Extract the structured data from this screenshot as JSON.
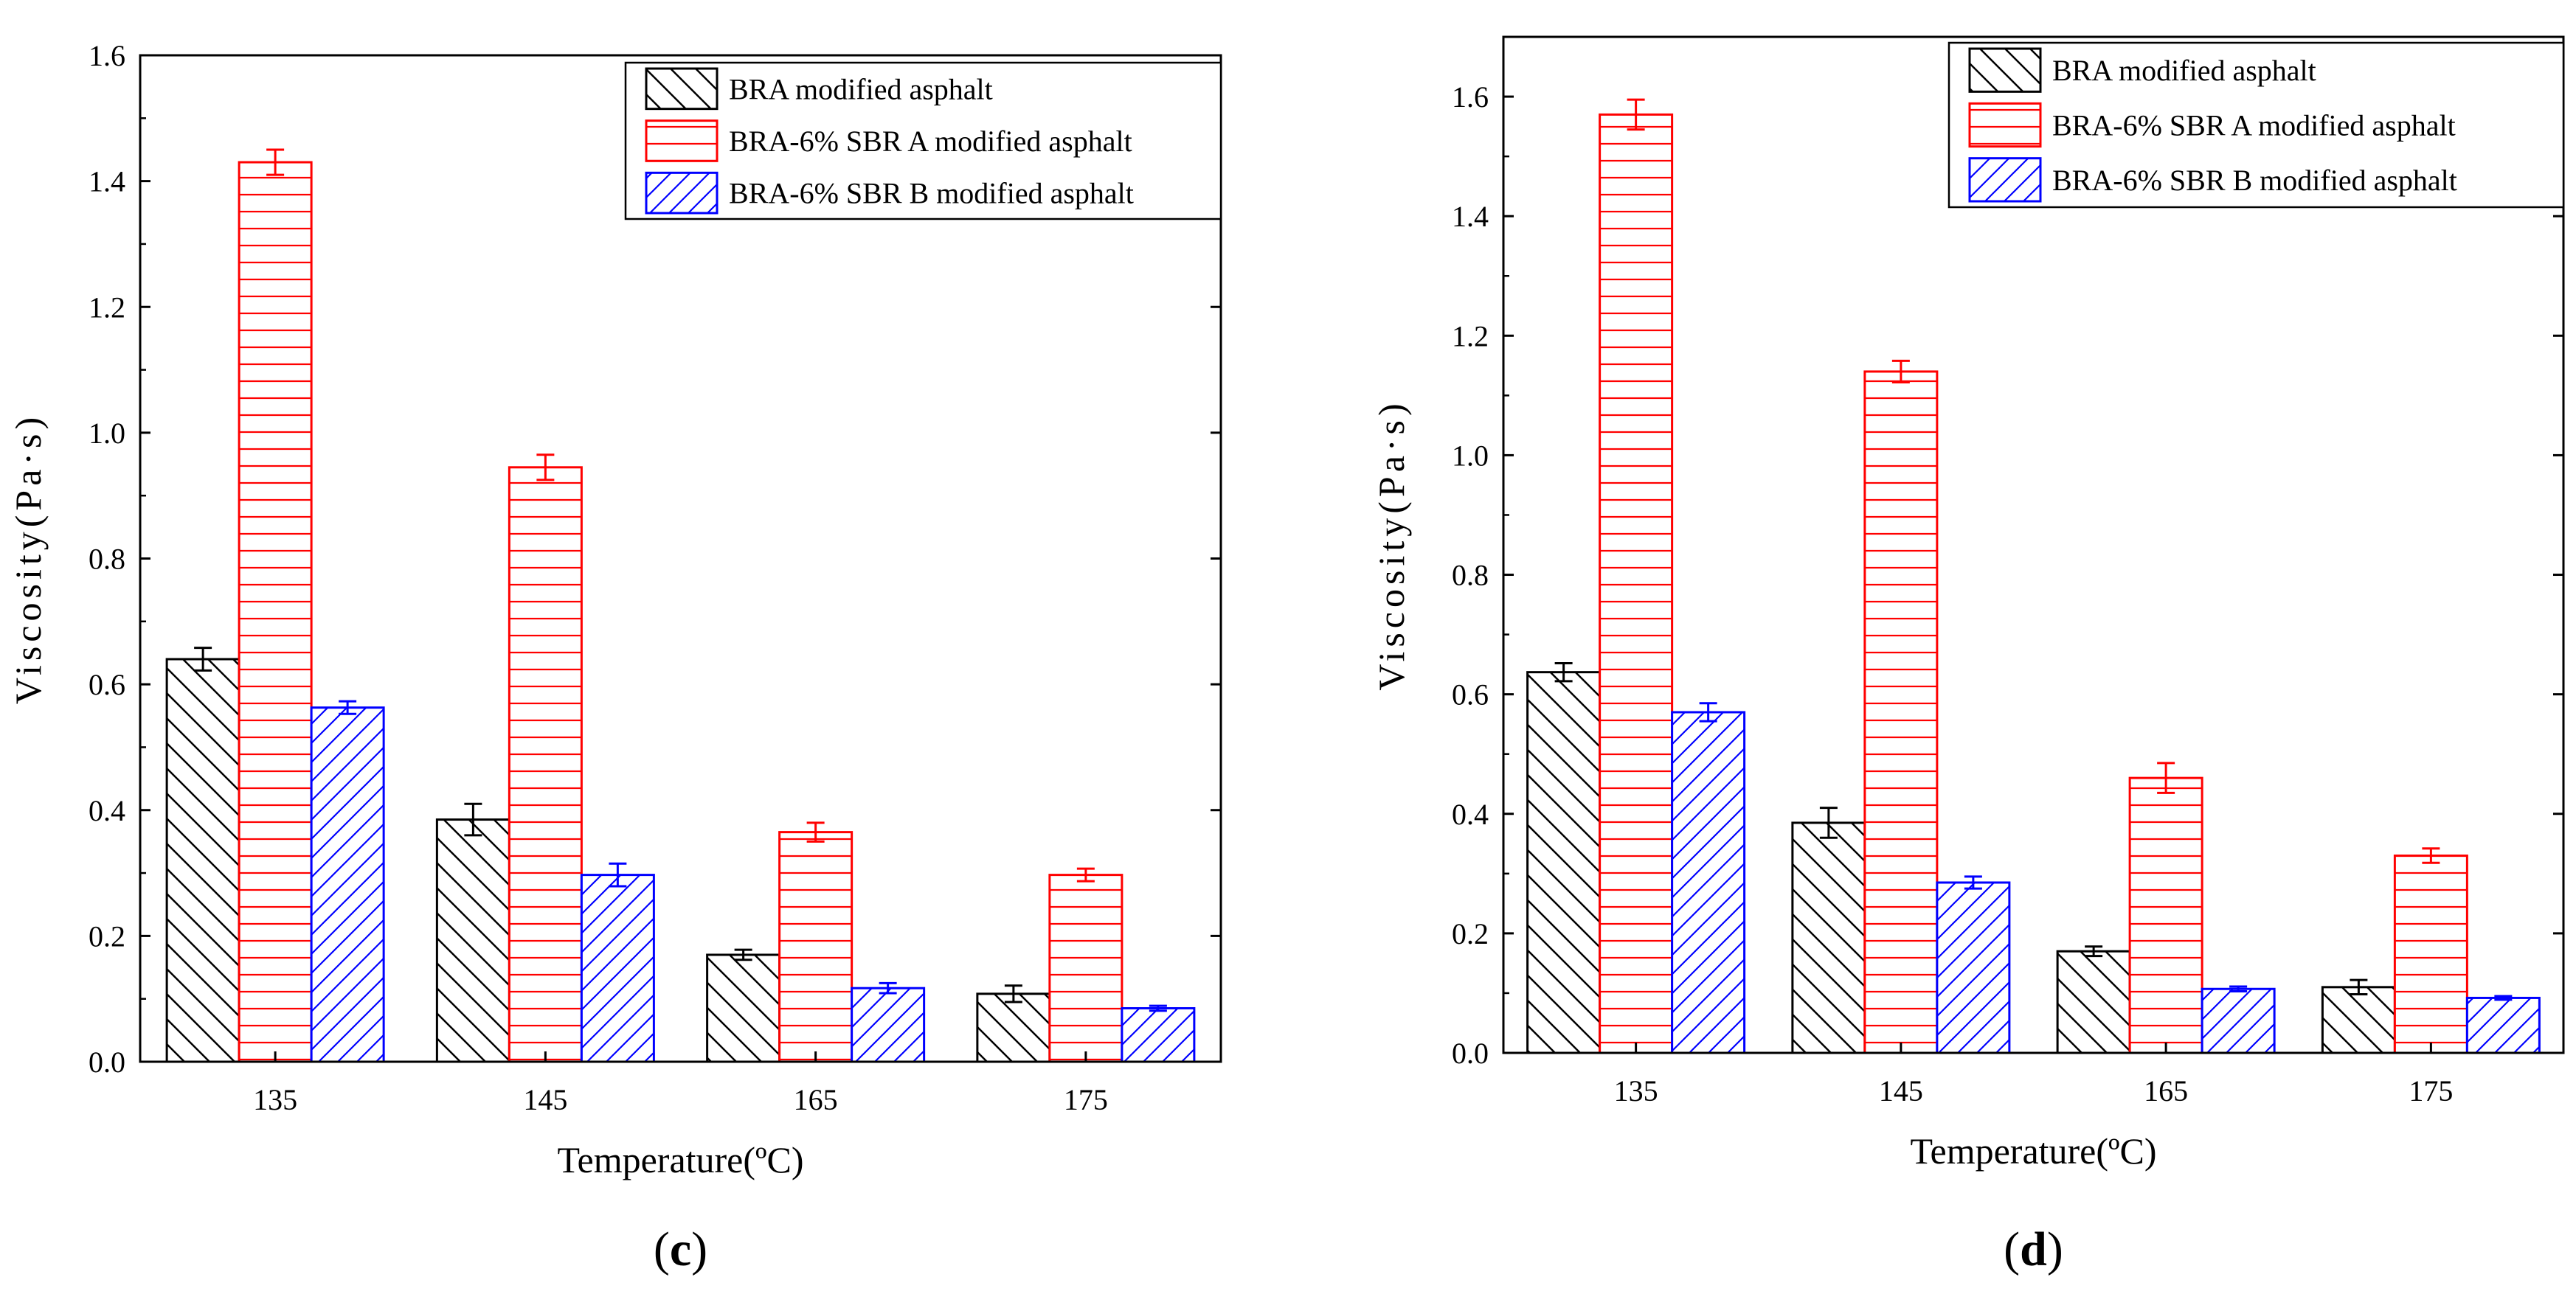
{
  "series_colors": [
    "#000000",
    "#ff0000",
    "#0000ff"
  ],
  "chart_data": [
    {
      "type": "bar",
      "panel": "(c)",
      "panel_letter": "c",
      "categories": [
        "135",
        "145",
        "165",
        "175"
      ],
      "series": [
        {
          "name": "BRA modified asphalt",
          "values": [
            0.64,
            0.385,
            0.17,
            0.108
          ],
          "errors": [
            0.018,
            0.025,
            0.008,
            0.013
          ]
        },
        {
          "name": "BRA-6% SBR A modified asphalt",
          "values": [
            1.43,
            0.945,
            0.365,
            0.297
          ],
          "errors": [
            0.02,
            0.02,
            0.015,
            0.01
          ]
        },
        {
          "name": "BRA-6% SBR B modified asphalt",
          "values": [
            0.563,
            0.297,
            0.117,
            0.085
          ],
          "errors": [
            0.01,
            0.018,
            0.008,
            0.004
          ]
        }
      ],
      "xlabel": "Temperature(ºC)",
      "ylabel": "Viscosity(Pa·s)",
      "ylim": [
        0,
        1.6
      ],
      "yticks": [
        0.0,
        0.2,
        0.4,
        0.6,
        0.8,
        1.0,
        1.2,
        1.4,
        1.6
      ],
      "legend_position": "top-right"
    },
    {
      "type": "bar",
      "panel": "(d)",
      "panel_letter": "d",
      "categories": [
        "135",
        "145",
        "165",
        "175"
      ],
      "series": [
        {
          "name": "BRA modified asphalt",
          "values": [
            0.637,
            0.385,
            0.17,
            0.11
          ],
          "errors": [
            0.015,
            0.025,
            0.008,
            0.012
          ]
        },
        {
          "name": "BRA-6% SBR A modified asphalt",
          "values": [
            1.57,
            1.14,
            0.46,
            0.33
          ],
          "errors": [
            0.025,
            0.018,
            0.025,
            0.012
          ]
        },
        {
          "name": "BRA-6% SBR B modified asphalt",
          "values": [
            0.57,
            0.285,
            0.107,
            0.092
          ],
          "errors": [
            0.015,
            0.01,
            0.004,
            0.003
          ]
        }
      ],
      "xlabel": "Temperature(ºC)",
      "ylabel": "Viscosity(Pa·s)",
      "ylim": [
        0,
        1.7
      ],
      "yticks": [
        0.0,
        0.2,
        0.4,
        0.6,
        0.8,
        1.0,
        1.2,
        1.4,
        1.6
      ],
      "legend_position": "top-right"
    }
  ]
}
